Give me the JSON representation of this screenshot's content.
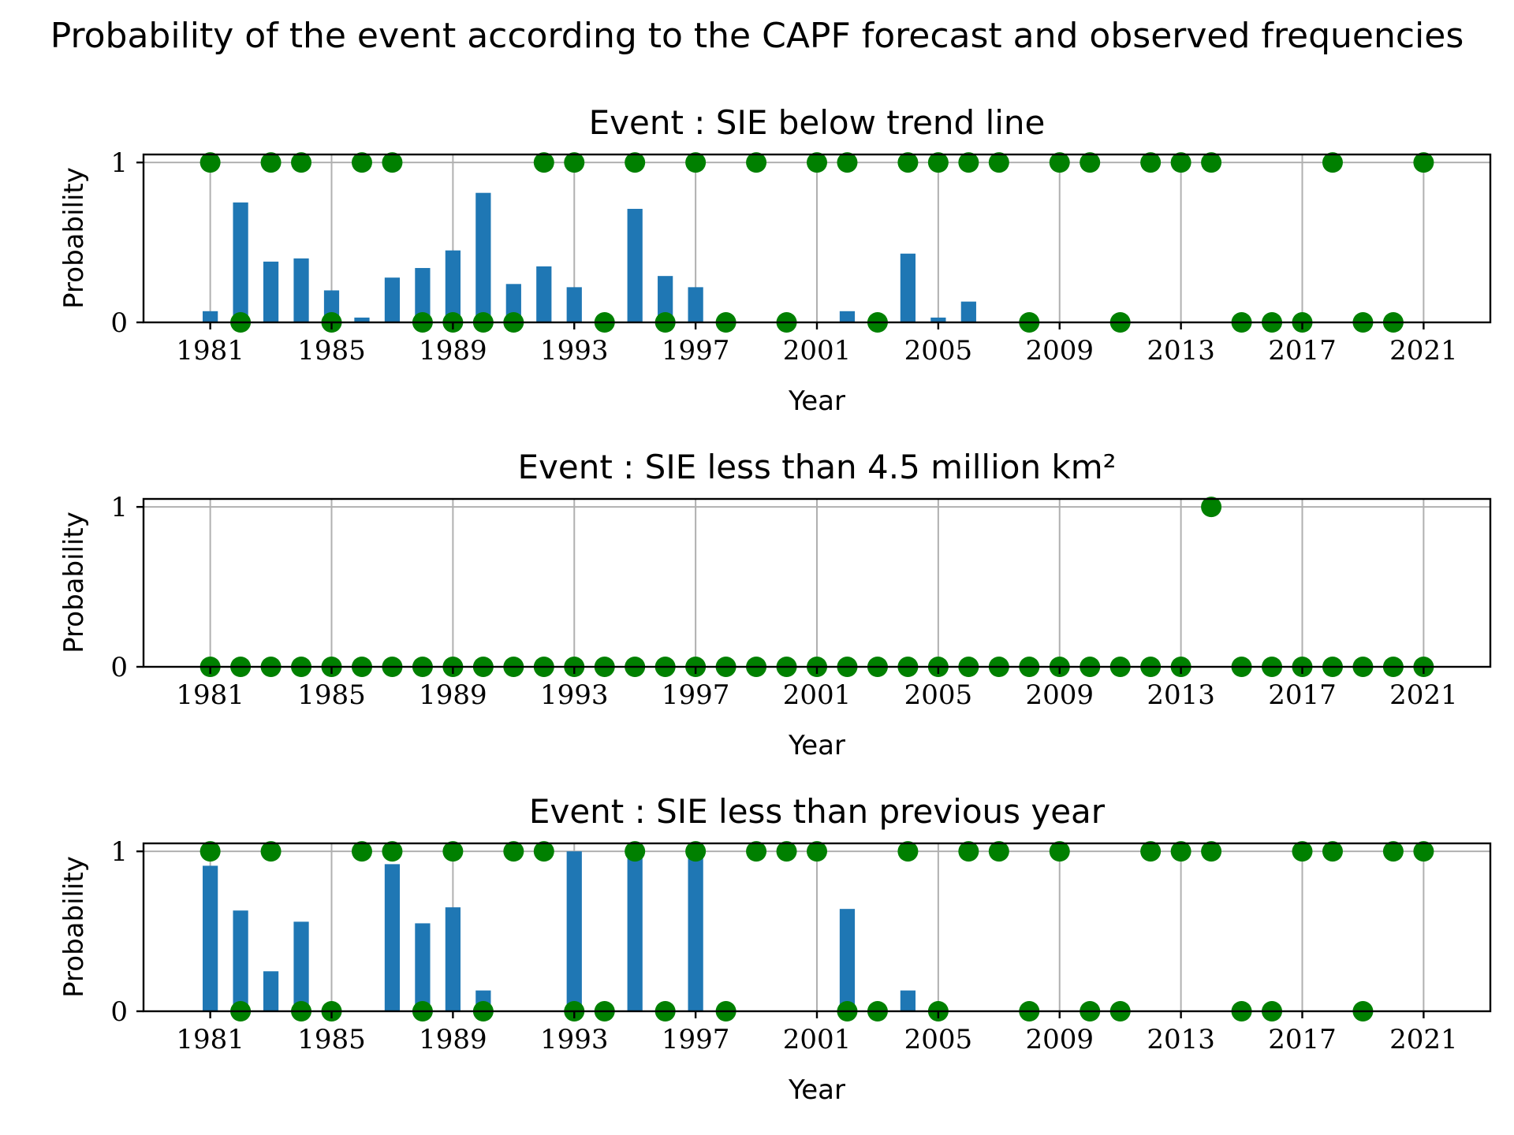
{
  "title": "Probability of the event according to the CAPF forecast and observed frequencies",
  "colors": {
    "bar": "#1f77b4",
    "observed": "#008000",
    "grid": "#b0b0b0"
  },
  "chart_data": [
    {
      "type": "bar",
      "title": "Event : SIE below trend line",
      "xlabel": "Year",
      "ylabel": "Probability",
      "xticks": [
        "1981",
        "1985",
        "1989",
        "1993",
        "1997",
        "2001",
        "2005",
        "2009",
        "2013",
        "2017",
        "2021"
      ],
      "yticks": [
        "0",
        "1"
      ],
      "xlim": [
        1978.8,
        2023.2
      ],
      "ylim": [
        0,
        1.05
      ],
      "grid": true,
      "years": [
        1981,
        1982,
        1983,
        1984,
        1985,
        1986,
        1987,
        1988,
        1989,
        1990,
        1991,
        1992,
        1993,
        1994,
        1995,
        1996,
        1997,
        1998,
        1999,
        2000,
        2001,
        2002,
        2003,
        2004,
        2005,
        2006,
        2007,
        2008,
        2009,
        2010,
        2011,
        2012,
        2013,
        2014,
        2015,
        2016,
        2017,
        2018,
        2019,
        2020,
        2021
      ],
      "forecast": [
        0.07,
        0.75,
        0.38,
        0.4,
        0.2,
        0.03,
        0.28,
        0.34,
        0.45,
        0.81,
        0.24,
        0.35,
        0.22,
        0,
        0.71,
        0.29,
        0.22,
        0,
        0,
        0.02,
        0,
        0.07,
        0.01,
        0.43,
        0.03,
        0.13,
        0,
        0,
        0,
        0,
        0,
        0,
        0,
        0,
        0,
        0,
        0,
        0,
        0,
        0,
        0
      ],
      "observed": [
        1,
        0,
        1,
        1,
        0,
        1,
        1,
        0,
        0,
        0,
        0,
        1,
        1,
        0,
        1,
        0,
        1,
        0,
        1,
        0,
        1,
        1,
        0,
        1,
        1,
        1,
        1,
        0,
        1,
        1,
        0,
        1,
        1,
        1,
        0,
        0,
        0,
        1,
        0,
        0,
        1
      ]
    },
    {
      "type": "bar",
      "title": "Event : SIE less than 4.5 million km²",
      "xlabel": "Year",
      "ylabel": "Probability",
      "xticks": [
        "1981",
        "1985",
        "1989",
        "1993",
        "1997",
        "2001",
        "2005",
        "2009",
        "2013",
        "2017",
        "2021"
      ],
      "yticks": [
        "0",
        "1"
      ],
      "xlim": [
        1978.8,
        2023.2
      ],
      "ylim": [
        0,
        1.05
      ],
      "grid": true,
      "years": [
        1981,
        1982,
        1983,
        1984,
        1985,
        1986,
        1987,
        1988,
        1989,
        1990,
        1991,
        1992,
        1993,
        1994,
        1995,
        1996,
        1997,
        1998,
        1999,
        2000,
        2001,
        2002,
        2003,
        2004,
        2005,
        2006,
        2007,
        2008,
        2009,
        2010,
        2011,
        2012,
        2013,
        2014,
        2015,
        2016,
        2017,
        2018,
        2019,
        2020,
        2021
      ],
      "forecast": [
        0,
        0,
        0,
        0,
        0,
        0,
        0,
        0,
        0,
        0,
        0,
        0,
        0,
        0,
        0,
        0,
        0,
        0,
        0,
        0,
        0,
        0,
        0,
        0,
        0,
        0,
        0,
        0,
        0,
        0,
        0,
        0,
        0,
        0,
        0,
        0,
        0,
        0,
        0,
        0,
        0
      ],
      "observed": [
        0,
        0,
        0,
        0,
        0,
        0,
        0,
        0,
        0,
        0,
        0,
        0,
        0,
        0,
        0,
        0,
        0,
        0,
        0,
        0,
        0,
        0,
        0,
        0,
        0,
        0,
        0,
        0,
        0,
        0,
        0,
        0,
        0,
        1,
        0,
        0,
        0,
        0,
        0,
        0,
        0
      ]
    },
    {
      "type": "bar",
      "title": "Event : SIE less than previous year",
      "xlabel": "Year",
      "ylabel": "Probability",
      "xticks": [
        "1981",
        "1985",
        "1989",
        "1993",
        "1997",
        "2001",
        "2005",
        "2009",
        "2013",
        "2017",
        "2021"
      ],
      "yticks": [
        "0",
        "1"
      ],
      "xlim": [
        1978.8,
        2023.2
      ],
      "ylim": [
        0,
        1.05
      ],
      "grid": true,
      "years": [
        1981,
        1982,
        1983,
        1984,
        1985,
        1986,
        1987,
        1988,
        1989,
        1990,
        1991,
        1992,
        1993,
        1994,
        1995,
        1996,
        1997,
        1998,
        1999,
        2000,
        2001,
        2002,
        2003,
        2004,
        2005,
        2006,
        2007,
        2008,
        2009,
        2010,
        2011,
        2012,
        2013,
        2014,
        2015,
        2016,
        2017,
        2018,
        2019,
        2020,
        2021
      ],
      "forecast": [
        0.91,
        0.63,
        0.25,
        0.56,
        0,
        0,
        0.92,
        0.55,
        0.65,
        0.13,
        0,
        0,
        1.0,
        0,
        1.0,
        0,
        1.0,
        0,
        0,
        0,
        0,
        0.64,
        0,
        0.13,
        0,
        0,
        0,
        0,
        0,
        0,
        0,
        0,
        0,
        0,
        0,
        0,
        0,
        0,
        0,
        0,
        0
      ],
      "observed": [
        1,
        0,
        1,
        0,
        0,
        1,
        1,
        0,
        1,
        0,
        1,
        1,
        0,
        0,
        1,
        0,
        1,
        0,
        1,
        1,
        1,
        0,
        0,
        1,
        0,
        1,
        1,
        0,
        1,
        0,
        0,
        1,
        1,
        1,
        0,
        0,
        1,
        1,
        0,
        1,
        1
      ]
    }
  ]
}
